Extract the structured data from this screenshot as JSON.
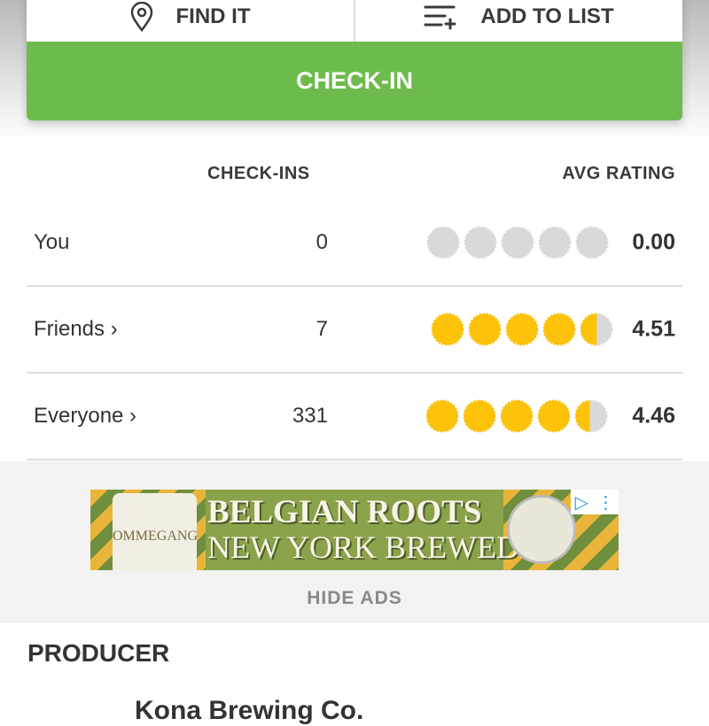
{
  "actions": {
    "find_it": "FIND IT",
    "add_to_list": "ADD TO LIST",
    "check_in": "CHECK-IN",
    "accent": "#6dbb4c"
  },
  "stats": {
    "headers": {
      "checkins": "CHECK-INS",
      "avg_rating": "AVG RATING"
    },
    "rows": [
      {
        "label": "You",
        "count": "0",
        "rating": 0.0,
        "rating_text": "0.00"
      },
      {
        "label": "Friends ›",
        "count": "7",
        "rating": 4.51,
        "rating_text": "4.51"
      },
      {
        "label": "Everyone ›",
        "count": "331",
        "rating": 4.46,
        "rating_text": "4.46"
      }
    ],
    "bubble_color": "#fdc20a",
    "empty_color": "#d9d9d9"
  },
  "ad": {
    "line1": "BELGIAN ROOTS",
    "line2": "NEW YORK BREWED",
    "brand": "OMMEGANG",
    "hide_ads": "HIDE ADS"
  },
  "producer": {
    "heading": "PRODUCER",
    "name": "Kona Brewing Co."
  }
}
